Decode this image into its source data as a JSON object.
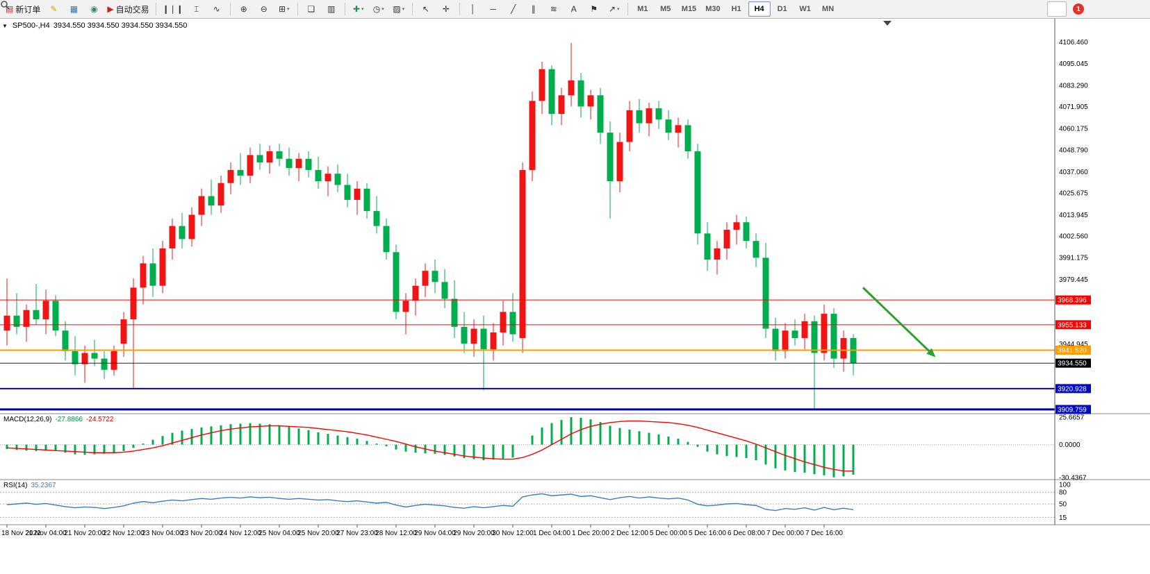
{
  "colors": {
    "up": "#f01414",
    "down": "#00ae4d",
    "macd_hist": "#00ae4d",
    "macd_signal": "#ff0000",
    "rsi": "#3e7bbf",
    "arrow": "#2f9e2f"
  },
  "icons": {
    "one_click_collapse": "▼"
  },
  "toolbar": {
    "groups": [
      {
        "items": [
          {
            "name": "new-order-button",
            "icon": "▤",
            "icon_color": "#b03030",
            "label": "新订单"
          },
          {
            "name": "metaeditor-button",
            "icon": "✎",
            "icon_color": "#d4a017"
          },
          {
            "name": "charts-window-button",
            "icon": "▦",
            "icon_color": "#3a6ea5"
          },
          {
            "name": "community-button",
            "icon": "◉",
            "icon_color": "#2e8b57"
          },
          {
            "name": "autotrading-button",
            "icon": "▶",
            "icon_color": "#cc2020",
            "label": "自动交易"
          }
        ]
      },
      {
        "items": [
          {
            "name": "bar-chart-button",
            "icon": "❙❘❙"
          },
          {
            "name": "candlestick-chart-button",
            "icon": "⌶"
          },
          {
            "name": "line-chart-button",
            "icon": "∿"
          }
        ]
      },
      {
        "items": [
          {
            "name": "zoom-in-button",
            "icon": "⊕"
          },
          {
            "name": "zoom-out-button",
            "icon": "⊖"
          },
          {
            "name": "tile-windows-button",
            "icon": "⊞",
            "dropdown": true
          }
        ]
      },
      {
        "items": [
          {
            "name": "cascade-windows-button",
            "icon": "❏"
          },
          {
            "name": "auto-arrange-button",
            "icon": "▥"
          }
        ]
      },
      {
        "items": [
          {
            "name": "indicators-button",
            "icon": "✚",
            "icon_color": "#2e8b57",
            "dropdown": true
          },
          {
            "name": "periods-button",
            "icon": "◷",
            "dropdown": true
          },
          {
            "name": "templates-button",
            "icon": "▨",
            "dropdown": true
          }
        ]
      },
      {
        "items": [
          {
            "name": "cursor-button",
            "icon": "↖"
          },
          {
            "name": "crosshair-button",
            "icon": "✛"
          }
        ]
      },
      {
        "items": [
          {
            "name": "vertical-line-button",
            "icon": "│"
          },
          {
            "name": "horizontal-line-button",
            "icon": "─"
          },
          {
            "name": "trendline-button",
            "icon": "╱"
          },
          {
            "name": "channel-button",
            "icon": "∥"
          },
          {
            "name": "fibonacci-button",
            "icon": "≋"
          },
          {
            "name": "text-button",
            "icon": "A"
          },
          {
            "name": "label-button",
            "icon": "⚑"
          },
          {
            "name": "arrows-button",
            "icon": "↗",
            "dropdown": true
          }
        ]
      }
    ],
    "timeframes": [
      {
        "label": "M1"
      },
      {
        "label": "M5"
      },
      {
        "label": "M15"
      },
      {
        "label": "M30"
      },
      {
        "label": "H1"
      },
      {
        "label": "H4",
        "active": true
      },
      {
        "label": "D1"
      },
      {
        "label": "W1"
      },
      {
        "label": "MN"
      }
    ],
    "right": {
      "search_name": "search-button",
      "badge_label": "1"
    }
  },
  "chart_data": {
    "type": "candlestick",
    "symbol_title": "SP500-,H4",
    "ohlc_text": "3934.550 3934.550 3934.550 3934.550",
    "current_price": 3934.55,
    "price_axis_labels": [
      "4106.460",
      "4095.045",
      "4083.290",
      "4071.905",
      "4060.175",
      "4048.790",
      "4037.060",
      "4025.675",
      "4013.945",
      "4002.560",
      "3991.175",
      "3979.445",
      "3944.945"
    ],
    "hlines": [
      {
        "value": 3968.396,
        "label": "3968.396",
        "color": "#ff0000",
        "badge": "#ff0000",
        "width": 1
      },
      {
        "value": 3955.133,
        "label": "3955.133",
        "color": "#ff0000",
        "badge": "#ff0000",
        "width": 1
      },
      {
        "value": 3941.52,
        "label": "3941.520",
        "color": "#ff9c00",
        "badge": "#ff9c00",
        "width": 2
      },
      {
        "value": 3934.55,
        "label": "3934.550",
        "color": "#222222",
        "badge": "#000000",
        "width": 1
      },
      {
        "value": 3920.928,
        "label": "3920.928",
        "color": "#0000d8",
        "badge": "#0009c8",
        "width": 2
      },
      {
        "value": 3909.759,
        "label": "3909.759",
        "color": "#0000a8",
        "badge": "#0009c8",
        "width": 3
      }
    ],
    "time_labels": [
      "18 Nov 2022",
      "21 Nov 04:00",
      "21 Nov 20:00",
      "22 Nov 12:00",
      "23 Nov 04:00",
      "23 Nov 20:00",
      "24 Nov 12:00",
      "25 Nov 04:00",
      "25 Nov 20:00",
      "27 Nov 23:00",
      "28 Nov 12:00",
      "29 Nov 04:00",
      "29 Nov 20:00",
      "30 Nov 12:00",
      "1 Dec 04:00",
      "1 Dec 20:00",
      "2 Dec 12:00",
      "5 Dec 00:00",
      "5 Dec 16:00",
      "6 Dec 08:00",
      "7 Dec 00:00",
      "7 Dec 16:00"
    ],
    "time_label_step": 4,
    "candles": [
      [
        3952,
        3980,
        3944,
        3960
      ],
      [
        3960,
        3972,
        3950,
        3954
      ],
      [
        3954,
        3966,
        3946,
        3963
      ],
      [
        3963,
        3977,
        3955,
        3958
      ],
      [
        3958,
        3974,
        3950,
        3968
      ],
      [
        3968,
        3971,
        3949,
        3952
      ],
      [
        3952,
        3957,
        3936,
        3941
      ],
      [
        3941,
        3949,
        3928,
        3934
      ],
      [
        3934,
        3944,
        3924,
        3940
      ],
      [
        3940,
        3947,
        3933,
        3937
      ],
      [
        3937,
        3941,
        3926,
        3931
      ],
      [
        3931,
        3944,
        3928,
        3941
      ],
      [
        3945,
        3962,
        3938,
        3958
      ],
      [
        3958,
        3980,
        3921,
        3975
      ],
      [
        3975,
        3992,
        3966,
        3988
      ],
      [
        3988,
        3996,
        3970,
        3976
      ],
      [
        3976,
        4000,
        3972,
        3996
      ],
      [
        3996,
        4012,
        3990,
        4008
      ],
      [
        4008,
        4015,
        3996,
        4001
      ],
      [
        4001,
        4018,
        3997,
        4014
      ],
      [
        4014,
        4028,
        4008,
        4024
      ],
      [
        4024,
        4033,
        4014,
        4019
      ],
      [
        4019,
        4035,
        4015,
        4031
      ],
      [
        4031,
        4042,
        4025,
        4038
      ],
      [
        4038,
        4047,
        4030,
        4035
      ],
      [
        4035,
        4050,
        4031,
        4046
      ],
      [
        4046,
        4052,
        4038,
        4042
      ],
      [
        4042,
        4051,
        4036,
        4048
      ],
      [
        4048,
        4052,
        4040,
        4044
      ],
      [
        4044,
        4050,
        4035,
        4039
      ],
      [
        4039,
        4047,
        4032,
        4044
      ],
      [
        4044,
        4048,
        4034,
        4038
      ],
      [
        4038,
        4045,
        4028,
        4032
      ],
      [
        4032,
        4040,
        4024,
        4036
      ],
      [
        4036,
        4041,
        4026,
        4030
      ],
      [
        4030,
        4036,
        4018,
        4022
      ],
      [
        4022,
        4032,
        4014,
        4028
      ],
      [
        4028,
        4031,
        4012,
        4016
      ],
      [
        4016,
        4024,
        4004,
        4008
      ],
      [
        4008,
        4012,
        3990,
        3994
      ],
      [
        3994,
        3998,
        3958,
        3962
      ],
      [
        3962,
        3972,
        3950,
        3968
      ],
      [
        3968,
        3980,
        3960,
        3976
      ],
      [
        3976,
        3988,
        3970,
        3984
      ],
      [
        3984,
        3990,
        3972,
        3978
      ],
      [
        3978,
        3985,
        3964,
        3969
      ],
      [
        3969,
        3979,
        3948,
        3954
      ],
      [
        3954,
        3962,
        3940,
        3945
      ],
      [
        3945,
        3958,
        3938,
        3953
      ],
      [
        3953,
        3960,
        3920,
        3942
      ],
      [
        3942,
        3956,
        3936,
        3951
      ],
      [
        3951,
        3968,
        3944,
        3962
      ],
      [
        3962,
        3972,
        3946,
        3950
      ],
      [
        3948,
        4042,
        3940,
        4038
      ],
      [
        4038,
        4080,
        4032,
        4075
      ],
      [
        4075,
        4096,
        4068,
        4092
      ],
      [
        4092,
        4094,
        4062,
        4068
      ],
      [
        4068,
        4082,
        4062,
        4078
      ],
      [
        4078,
        4106,
        4072,
        4086
      ],
      [
        4086,
        4090,
        4066,
        4072
      ],
      [
        4072,
        4081,
        4065,
        4078
      ],
      [
        4078,
        4082,
        4052,
        4058
      ],
      [
        4058,
        4064,
        4012,
        4032
      ],
      [
        4032,
        4058,
        4026,
        4053
      ],
      [
        4053,
        4075,
        4048,
        4070
      ],
      [
        4070,
        4076,
        4058,
        4063
      ],
      [
        4063,
        4074,
        4056,
        4071
      ],
      [
        4071,
        4075,
        4060,
        4065
      ],
      [
        4065,
        4070,
        4054,
        4058
      ],
      [
        4058,
        4066,
        4050,
        4062
      ],
      [
        4062,
        4065,
        4044,
        4048
      ],
      [
        4048,
        4052,
        3998,
        4004
      ],
      [
        4004,
        4010,
        3984,
        3990
      ],
      [
        3990,
        4000,
        3982,
        3996
      ],
      [
        3996,
        4010,
        3990,
        4006
      ],
      [
        4006,
        4014,
        3998,
        4010
      ],
      [
        4010,
        4013,
        3996,
        4000
      ],
      [
        4000,
        4004,
        3986,
        3991
      ],
      [
        3991,
        3999,
        3948,
        3953
      ],
      [
        3953,
        3959,
        3936,
        3941
      ],
      [
        3941,
        3956,
        3937,
        3952
      ],
      [
        3952,
        3958,
        3944,
        3948
      ],
      [
        3948,
        3961,
        3942,
        3957
      ],
      [
        3957,
        3960,
        3910,
        3940
      ],
      [
        3940,
        3966,
        3936,
        3961
      ],
      [
        3961,
        3964,
        3932,
        3937
      ],
      [
        3937,
        3952,
        3930,
        3948
      ],
      [
        3948,
        3950,
        3928,
        3934.55
      ]
    ],
    "macd": {
      "title": "MACD(12,26,9)",
      "value_main": "-27.8866",
      "value_signal": "-24.5722",
      "axis": [
        "25.6657",
        "0.0000",
        "-30.4367"
      ],
      "histogram": [
        -4,
        -5,
        -5.5,
        -6,
        -5.5,
        -6,
        -7.5,
        -9,
        -9.5,
        -9,
        -8.5,
        -8,
        -6,
        -3,
        1,
        4.5,
        8,
        11,
        13,
        14.5,
        16,
        17,
        18,
        19,
        19.5,
        20,
        19.5,
        19,
        18,
        16.5,
        15,
        13.5,
        11.5,
        10,
        8.5,
        7,
        5.5,
        3.5,
        1,
        -1.5,
        -4.5,
        -6.5,
        -7.5,
        -8,
        -8.5,
        -9.5,
        -11,
        -12.5,
        -13.5,
        -14.5,
        -14,
        -13,
        -12,
        0,
        8.5,
        16,
        20,
        23,
        25.6,
        25,
        23.5,
        21,
        17.5,
        15.5,
        14,
        12.5,
        11,
        9.5,
        7.5,
        5.5,
        2.5,
        -2,
        -6.5,
        -9,
        -10.5,
        -11.5,
        -12.5,
        -14.5,
        -18.5,
        -22,
        -24,
        -25.5,
        -26,
        -27.5,
        -28.5,
        -30.4,
        -29.5,
        -27.89
      ],
      "signal": [
        -3,
        -3.5,
        -4,
        -4.5,
        -5,
        -5.5,
        -6,
        -6.5,
        -7,
        -7.5,
        -7.5,
        -7.5,
        -7,
        -6,
        -4.5,
        -3,
        -1,
        1.5,
        4,
        6.5,
        9,
        11,
        13,
        14.5,
        15.5,
        16.5,
        17,
        17.5,
        17.5,
        17,
        16.5,
        16,
        15,
        14,
        13,
        12,
        10.5,
        9,
        7,
        5,
        3,
        0.5,
        -2,
        -4,
        -6,
        -7.5,
        -9,
        -10.5,
        -11.5,
        -12.5,
        -13,
        -13.5,
        -13.5,
        -12,
        -9,
        -5,
        0,
        5,
        10,
        14,
        17,
        19,
        20.5,
        21.5,
        22,
        22,
        21.5,
        21,
        20.5,
        19.5,
        18,
        16,
        13.5,
        11,
        8.5,
        6,
        3.5,
        0.5,
        -3,
        -6.5,
        -10,
        -13,
        -16,
        -18.5,
        -21,
        -23,
        -24.5,
        -24.57
      ]
    },
    "rsi": {
      "title": "RSI(14)",
      "value": "35.2367",
      "axis": [
        "100",
        "80",
        "50",
        "15"
      ],
      "levels": [
        80,
        50,
        15
      ],
      "values": [
        48,
        50,
        52,
        49,
        51,
        47,
        43,
        40,
        42,
        41,
        38,
        41,
        45,
        52,
        56,
        53,
        57,
        60,
        58,
        61,
        64,
        62,
        65,
        67,
        65,
        68,
        66,
        67,
        64,
        62,
        64,
        62,
        60,
        61,
        58,
        56,
        58,
        55,
        52,
        54,
        47,
        42,
        46,
        49,
        47,
        45,
        41,
        39,
        43,
        40,
        43,
        46,
        44,
        68,
        73,
        76,
        71,
        73,
        75,
        69,
        71,
        66,
        61,
        66,
        69,
        65,
        68,
        65,
        63,
        65,
        60,
        49,
        45,
        47,
        50,
        51,
        48,
        46,
        36,
        33,
        38,
        36,
        40,
        34,
        41,
        35,
        39,
        35.24
      ]
    },
    "arrow": {
      "from_index": 88,
      "from_price": 3975,
      "to_index": 95.3,
      "to_price": 3938.5
    }
  }
}
